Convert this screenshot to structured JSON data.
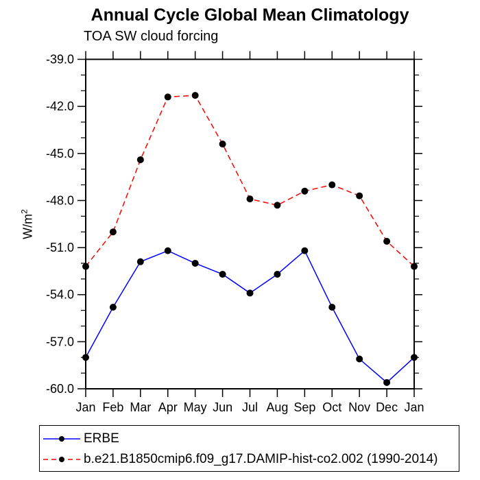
{
  "header": {
    "title": "Annual Cycle Global Mean Climatology",
    "subtitle": "TOA SW cloud forcing"
  },
  "y_axis": {
    "label_base": "W/m",
    "label_sup": "2"
  },
  "legend": {
    "entries": [
      {
        "label": "ERBE",
        "color": "#0000ff",
        "style": "solid",
        "marker_color": "#000000"
      },
      {
        "label": "b.e21.B1850cmip6.f09_g17.DAMIP-hist-co2.002 (1990-2014)",
        "color": "#ff0000",
        "style": "dashed",
        "marker_color": "#000000"
      }
    ]
  },
  "chart_data": {
    "type": "line",
    "title": "Annual Cycle Global Mean Climatology",
    "subtitle": "TOA SW cloud forcing",
    "ylabel": "W/m2",
    "xlabel": "",
    "categories": [
      "Jan",
      "Feb",
      "Mar",
      "Apr",
      "May",
      "Jun",
      "Jul",
      "Aug",
      "Sep",
      "Oct",
      "Nov",
      "Dec",
      "Jan"
    ],
    "series": [
      {
        "name": "ERBE",
        "color": "#0000ff",
        "line_style": "solid",
        "marker": "circle",
        "marker_color": "#000000",
        "values": [
          -58.0,
          -54.8,
          -51.9,
          -51.2,
          -52.0,
          -52.7,
          -53.9,
          -52.7,
          -51.2,
          -54.8,
          -58.1,
          -59.6,
          -58.0
        ]
      },
      {
        "name": "b.e21.B1850cmip6.f09_g17.DAMIP-hist-co2.002 (1990-2014)",
        "color": "#ff0000",
        "line_style": "dashed",
        "marker": "circle",
        "marker_color": "#000000",
        "values": [
          -52.2,
          -50.0,
          -45.4,
          -41.4,
          -41.3,
          -44.4,
          -47.9,
          -48.3,
          -47.4,
          -47.0,
          -47.7,
          -50.6,
          -52.2
        ]
      }
    ],
    "ylim": [
      -60.0,
      -39.0
    ],
    "yticks_major": [
      -39.0,
      -42.0,
      -45.0,
      -48.0,
      -51.0,
      -54.0,
      -57.0,
      -60.0
    ],
    "ytick_minor_step": 1.0,
    "grid": false,
    "legend_position": "bottom",
    "axis_color": "#000000",
    "background_color": "#ffffff"
  }
}
